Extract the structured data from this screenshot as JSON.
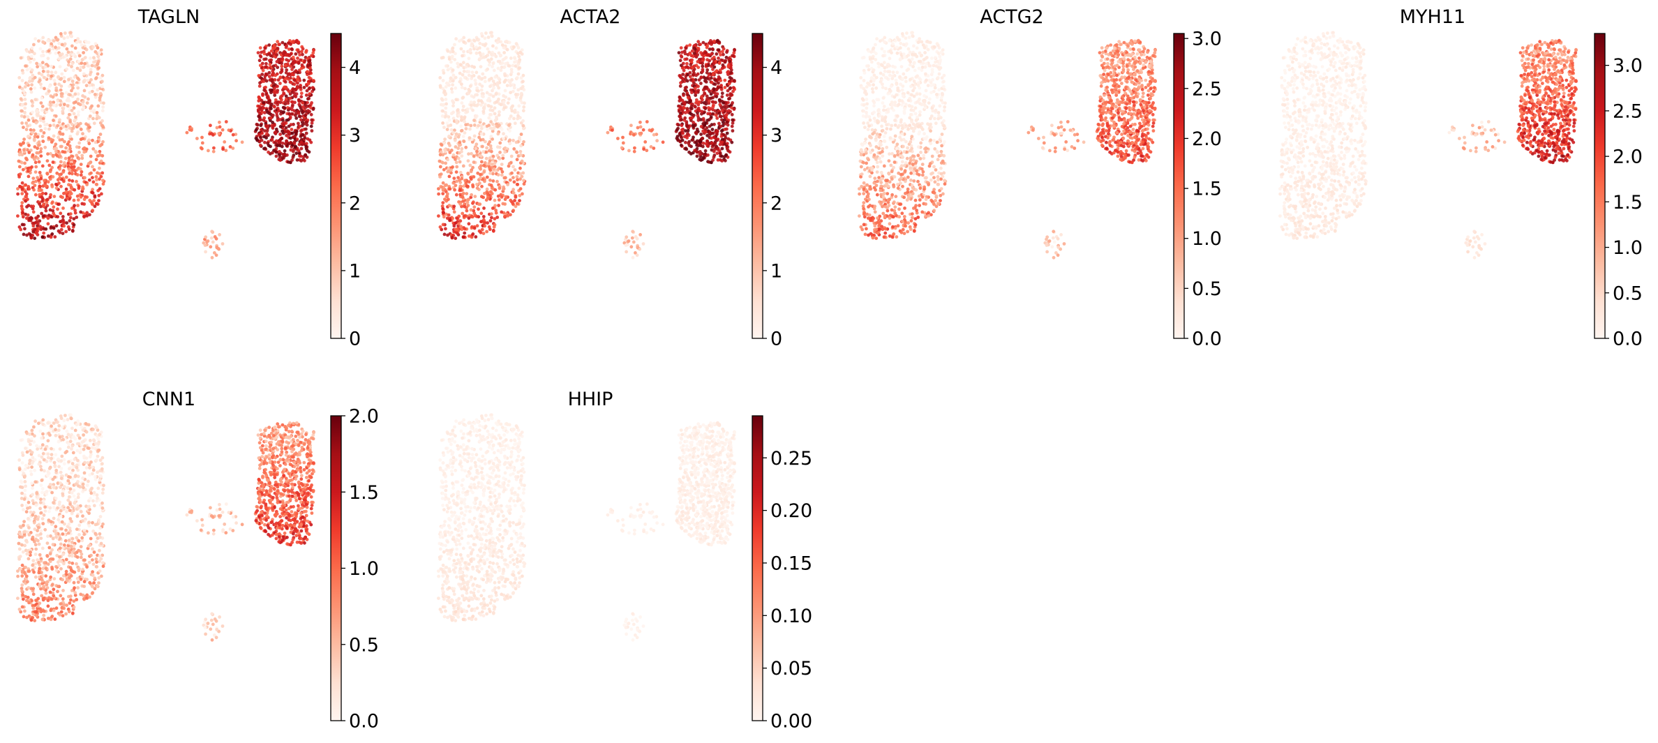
{
  "figure": {
    "colormap": "Reds",
    "colors": [
      "#fff5f0",
      "#fee0d2",
      "#fcbba1",
      "#fc9272",
      "#fb6a4a",
      "#ef3b2c",
      "#cb181d",
      "#a50f15",
      "#67000d"
    ]
  },
  "chart_data": [
    {
      "type": "scatter",
      "title": "TAGLN",
      "grid": false,
      "colorbar": {
        "range": [
          0,
          4.5
        ],
        "ticks": [
          0,
          1,
          2,
          3,
          4
        ],
        "tick_labels": [
          "0",
          "1",
          "2",
          "3",
          "4"
        ]
      },
      "expression_by_region": {
        "left_top": 0.18,
        "left_bottom": 0.85,
        "right_top": 0.75,
        "right_bottom": 0.9,
        "bridge": 0.5,
        "small_cluster": 0.3
      }
    },
    {
      "type": "scatter",
      "title": "ACTA2",
      "grid": false,
      "colorbar": {
        "range": [
          0,
          4.5
        ],
        "ticks": [
          0,
          1,
          2,
          3,
          4
        ],
        "tick_labels": [
          "0",
          "1",
          "2",
          "3",
          "4"
        ]
      },
      "expression_by_region": {
        "left_top": 0.08,
        "left_bottom": 0.7,
        "right_top": 0.78,
        "right_bottom": 0.9,
        "bridge": 0.45,
        "small_cluster": 0.2
      }
    },
    {
      "type": "scatter",
      "title": "ACTG2",
      "grid": false,
      "colorbar": {
        "range": [
          0,
          3.05
        ],
        "ticks": [
          0,
          0.5,
          1,
          1.5,
          2,
          2.5,
          3
        ],
        "tick_labels": [
          "0.0",
          "0.5",
          "1.0",
          "1.5",
          "2.0",
          "2.5",
          "3.0"
        ]
      },
      "expression_by_region": {
        "left_top": 0.04,
        "left_bottom": 0.55,
        "right_top": 0.35,
        "right_bottom": 0.6,
        "bridge": 0.25,
        "small_cluster": 0.15
      }
    },
    {
      "type": "scatter",
      "title": "MYH11",
      "grid": false,
      "colorbar": {
        "range": [
          0,
          3.35
        ],
        "ticks": [
          0,
          0.5,
          1,
          1.5,
          2,
          2.5,
          3
        ],
        "tick_labels": [
          "0.0",
          "0.5",
          "1.0",
          "1.5",
          "2.0",
          "2.5",
          "3.0"
        ]
      },
      "expression_by_region": {
        "left_top": 0.03,
        "left_bottom": 0.08,
        "right_top": 0.4,
        "right_bottom": 0.75,
        "bridge": 0.2,
        "small_cluster": 0.1
      }
    },
    {
      "type": "scatter",
      "title": "CNN1",
      "grid": false,
      "colorbar": {
        "range": [
          0,
          2.0
        ],
        "ticks": [
          0,
          0.5,
          1,
          1.5,
          2
        ],
        "tick_labels": [
          "0.0",
          "0.5",
          "1.0",
          "1.5",
          "2.0"
        ]
      },
      "expression_by_region": {
        "left_top": 0.12,
        "left_bottom": 0.45,
        "right_top": 0.35,
        "right_bottom": 0.65,
        "bridge": 0.2,
        "small_cluster": 0.15
      }
    },
    {
      "type": "scatter",
      "title": "HHIP",
      "grid": false,
      "colorbar": {
        "range": [
          0,
          0.29
        ],
        "ticks": [
          0,
          0.05,
          0.1,
          0.15,
          0.2,
          0.25
        ],
        "tick_labels": [
          "0.00",
          "0.05",
          "0.10",
          "0.15",
          "0.20",
          "0.25"
        ]
      },
      "expression_by_region": {
        "left_top": 0.03,
        "left_bottom": 0.1,
        "right_top": 0.03,
        "right_bottom": 0.04,
        "bridge": 0.02,
        "small_cluster": 0.02
      }
    }
  ]
}
